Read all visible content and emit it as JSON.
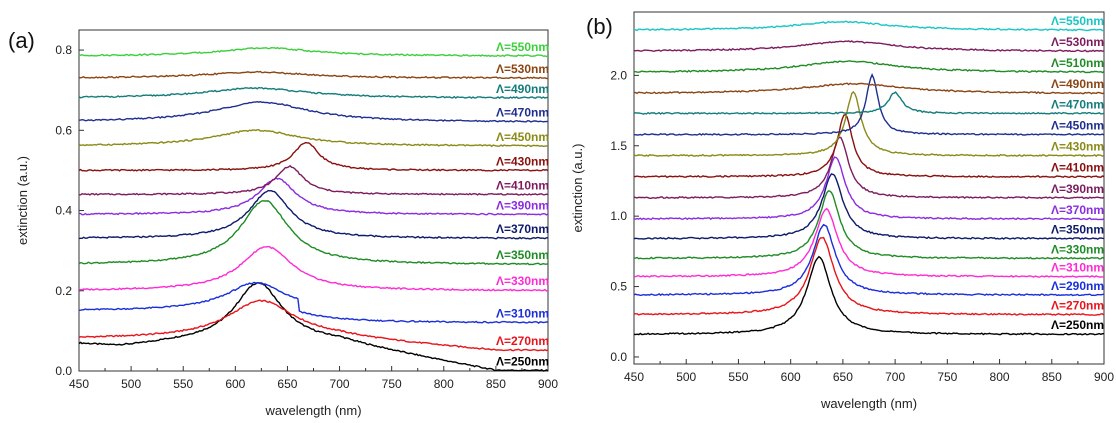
{
  "chart_data": [
    {
      "type": "line",
      "panel_label": "(a)",
      "xlabel": "wavelength (nm)",
      "ylabel": "extinction (a.u.)",
      "xlim": [
        450,
        900
      ],
      "ylim": [
        0,
        0.85
      ],
      "xticks": [
        450,
        500,
        550,
        600,
        650,
        700,
        750,
        800,
        850,
        900
      ],
      "yticks": [
        0.0,
        0.2,
        0.4,
        0.6,
        0.8
      ],
      "ytick_labels": [
        "0.0",
        "0.2",
        "0.4",
        "0.6",
        "0.8"
      ],
      "grid": false,
      "legend_placement": "right, inline labels",
      "series": [
        {
          "name": "Λ=250nm",
          "color": "#000000",
          "base": 0.07,
          "profile": "black"
        },
        {
          "name": "Λ=270nm",
          "color": "#e8141a",
          "base": 0.08,
          "profile": "red"
        },
        {
          "name": "Λ=310nm",
          "color": "#1a2edb",
          "base": 0.15,
          "profile": "blue"
        },
        {
          "name": "Λ=330nm",
          "color": "#ff2ad4",
          "base": 0.2,
          "peak": 630,
          "amp": 0.11,
          "width": 30
        },
        {
          "name": "Λ=350nm",
          "color": "#1e8c24",
          "base": 0.265,
          "peak": 628,
          "amp": 0.16,
          "width": 28
        },
        {
          "name": "Λ=370nm",
          "color": "#0d1a6b",
          "base": 0.33,
          "peak": 633,
          "amp": 0.12,
          "width": 24
        },
        {
          "name": "Λ=390nm",
          "color": "#8b2be2",
          "base": 0.39,
          "peak": 640,
          "amp": 0.09,
          "width": 22
        },
        {
          "name": "Λ=410nm",
          "color": "#7d1b5e",
          "base": 0.44,
          "peak": 652,
          "amp": 0.07,
          "width": 16
        },
        {
          "name": "Λ=430nm",
          "color": "#8a0f0f",
          "base": 0.5,
          "peak": 668,
          "amp": 0.07,
          "width": 15
        },
        {
          "name": "Λ=450nm",
          "color": "#8a8a16",
          "base": 0.56,
          "peak": 620,
          "amp": 0.04,
          "width": 50
        },
        {
          "name": "Λ=470nm",
          "color": "#1e2f8f",
          "base": 0.62,
          "peak": 625,
          "amp": 0.05,
          "width": 55
        },
        {
          "name": "Λ=490nm",
          "color": "#137c7c",
          "base": 0.68,
          "peak": 620,
          "amp": 0.025,
          "width": 60
        },
        {
          "name": "Λ=530nm",
          "color": "#8b4513",
          "base": 0.73,
          "peak": 620,
          "amp": 0.015,
          "width": 60
        },
        {
          "name": "Λ=550nm",
          "color": "#3ccf3c",
          "base": 0.785,
          "peak": 630,
          "amp": 0.02,
          "width": 55
        }
      ]
    },
    {
      "type": "line",
      "panel_label": "(b)",
      "xlabel": "wavelength (nm)",
      "ylabel": "extinction (a.u.)",
      "xlim": [
        450,
        900
      ],
      "ylim": [
        -0.05,
        2.45
      ],
      "xticks": [
        450,
        500,
        550,
        600,
        650,
        700,
        750,
        800,
        850,
        900
      ],
      "yticks": [
        0.0,
        0.5,
        1.0,
        1.5,
        2.0
      ],
      "ytick_labels": [
        "0.0",
        "0.5",
        "1.0",
        "1.5",
        "2.0"
      ],
      "grid": false,
      "legend_placement": "right, inline labels",
      "series": [
        {
          "name": "Λ=250nm",
          "color": "#000000",
          "base": 0.16,
          "peak": 627,
          "amp": 0.55,
          "width": 14
        },
        {
          "name": "Λ=270nm",
          "color": "#e8141a",
          "base": 0.3,
          "peak": 630,
          "amp": 0.55,
          "width": 14
        },
        {
          "name": "Λ=290nm",
          "color": "#1a2edb",
          "base": 0.44,
          "peak": 632,
          "amp": 0.5,
          "width": 13
        },
        {
          "name": "Λ=310nm",
          "color": "#ff2ad4",
          "base": 0.57,
          "peak": 634,
          "amp": 0.48,
          "width": 13
        },
        {
          "name": "Λ=330nm",
          "color": "#1e8c24",
          "base": 0.7,
          "peak": 637,
          "amp": 0.48,
          "width": 12
        },
        {
          "name": "Λ=350nm",
          "color": "#0d1a6b",
          "base": 0.84,
          "peak": 640,
          "amp": 0.46,
          "width": 12
        },
        {
          "name": "Λ=370nm",
          "color": "#8b2be2",
          "base": 0.98,
          "peak": 643,
          "amp": 0.44,
          "width": 11
        },
        {
          "name": "Λ=390nm",
          "color": "#7d1b5e",
          "base": 1.13,
          "peak": 647,
          "amp": 0.43,
          "width": 10
        },
        {
          "name": "Λ=410nm",
          "color": "#8a0f0f",
          "base": 1.28,
          "peak": 652,
          "amp": 0.44,
          "width": 9
        },
        {
          "name": "Λ=430nm",
          "color": "#8a8a16",
          "base": 1.43,
          "peak": 660,
          "amp": 0.45,
          "width": 9
        },
        {
          "name": "Λ=450nm",
          "color": "#1e2f8f",
          "base": 1.58,
          "peak": 678,
          "amp": 0.42,
          "width": 7
        },
        {
          "name": "Λ=470nm",
          "color": "#137c7c",
          "base": 1.73,
          "peak": 700,
          "amp": 0.15,
          "width": 8
        },
        {
          "name": "Λ=490nm",
          "color": "#8b4513",
          "base": 1.87,
          "peak": 660,
          "amp": 0.07,
          "width": 60
        },
        {
          "name": "Λ=510nm",
          "color": "#1e8c24",
          "base": 2.02,
          "peak": 655,
          "amp": 0.08,
          "width": 55
        },
        {
          "name": "Λ=530nm",
          "color": "#7d1b5e",
          "base": 2.17,
          "peak": 655,
          "amp": 0.07,
          "width": 55
        },
        {
          "name": "Λ=550nm",
          "color": "#19c6c6",
          "base": 2.32,
          "peak": 650,
          "amp": 0.06,
          "width": 55
        }
      ]
    }
  ]
}
